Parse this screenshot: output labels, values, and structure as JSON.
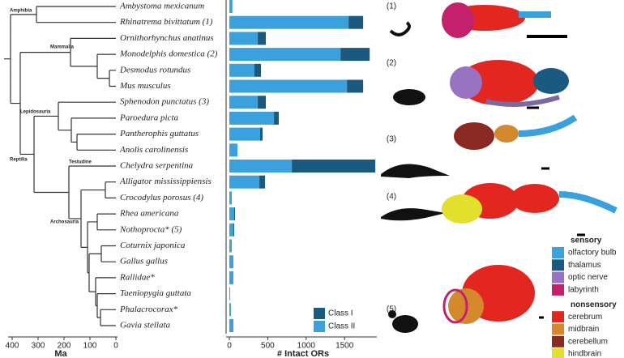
{
  "chart_data": {
    "type": "bar",
    "orientation": "horizontal",
    "stacked": true,
    "categories": [
      "Ambystoma mexicanum",
      "Rhinatrema bivittatum (1)",
      "Ornithorhynchus anatinus",
      "Monodelphis domestica (2)",
      "Desmodus rotundus",
      "Mus musculus",
      "Sphenodon punctatus (3)",
      "Paroedura picta",
      "Pantherophis guttatus",
      "Anolis carolinensis",
      "Chelydra serpentina",
      "Alligator mississippiensis",
      "Crocodylus porosus (4)",
      "Rhea americana",
      "Nothoprocta* (5)",
      "Coturnix japonica",
      "Gallus gallus",
      "Rallidae*",
      "Taeniopygia guttata",
      "Phalacrocorax*",
      "Gavia stellata"
    ],
    "series": [
      {
        "name": "Class II",
        "color": "#3ba1dd",
        "values": [
          40,
          1552,
          370,
          1447,
          327,
          1531,
          370,
          581,
          401,
          106,
          813,
          391,
          32,
          63,
          53,
          32,
          53,
          53,
          11,
          21,
          53
        ]
      },
      {
        "name": "Class I",
        "color": "#1b5a80",
        "values": [
          0,
          190,
          105,
          380,
          85,
          211,
          105,
          63,
          32,
          0,
          1087,
          74,
          0,
          11,
          10,
          0,
          0,
          0,
          0,
          0,
          0
        ]
      }
    ],
    "xlabel": "# Intact ORs",
    "xlim": [
      0,
      1920
    ],
    "xticks": [
      0,
      500,
      1000,
      1500
    ],
    "legend": "lower-right"
  },
  "tree": {
    "xlabel": "Ma",
    "xlim": [
      400,
      0
    ],
    "xticks": [
      400,
      300,
      200,
      100,
      0
    ],
    "clades": [
      "Amphibia",
      "Mammalia",
      "Lepidosauria",
      "Reptilia",
      "Testudine",
      "Archosauria"
    ]
  },
  "specimens": [
    "(1)",
    "(2)",
    "(3)",
    "(4)",
    "(5)"
  ],
  "brain_legend": {
    "sensory": {
      "title": "sensory",
      "items": [
        {
          "name": "olfactory bulb",
          "color": "#3ba1dd"
        },
        {
          "name": "thalamus",
          "color": "#1b5a80"
        },
        {
          "name": "optic nerve",
          "color": "#9a72c4"
        },
        {
          "name": "labyrinth",
          "color": "#c4206c"
        }
      ]
    },
    "nonsensory": {
      "title": "nonsensory",
      "items": [
        {
          "name": "cerebrum",
          "color": "#e3261f"
        },
        {
          "name": "midbrain",
          "color": "#d48a2c"
        },
        {
          "name": "cerebellum",
          "color": "#8b2a22"
        },
        {
          "name": "hindbrain",
          "color": "#e2e02c"
        }
      ]
    }
  }
}
